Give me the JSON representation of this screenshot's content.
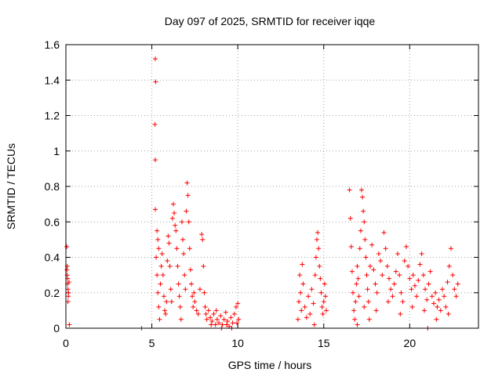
{
  "chart_data": {
    "type": "scatter",
    "title": "Day 097 of 2025, SRMTID for receiver iqqe",
    "xlabel": "GPS time / hours",
    "ylabel": "SRMTID / TECUs",
    "xlim": [
      0,
      24
    ],
    "ylim": [
      0,
      1.6
    ],
    "x_ticks": [
      0,
      5,
      10,
      15,
      20
    ],
    "x_tick_labels": [
      "0",
      "5",
      "10",
      "15",
      "20"
    ],
    "y_ticks": [
      0,
      0.2,
      0.4,
      0.6,
      0.8,
      1,
      1.2,
      1.4,
      1.6
    ],
    "y_tick_labels": [
      "0",
      "0.2",
      "0.4",
      "0.6",
      "0.8",
      "1",
      "1.2",
      "1.4",
      "1.6"
    ],
    "grid": true,
    "marker": "+",
    "marker_color": "#ff0000",
    "series": [
      {
        "name": "SRMTID",
        "points": [
          [
            0.05,
            0.46
          ],
          [
            0.06,
            0.33
          ],
          [
            0.08,
            0.3
          ],
          [
            0.1,
            0.25
          ],
          [
            0.12,
            0.22
          ],
          [
            0.14,
            0.18
          ],
          [
            0.1,
            0.28
          ],
          [
            0.15,
            0.2
          ],
          [
            0.18,
            0.26
          ],
          [
            0.08,
            0.35
          ],
          [
            0.2,
            0.02
          ],
          [
            0.12,
            0.15
          ],
          [
            4.4,
            0.0
          ],
          [
            5.2,
            1.52
          ],
          [
            5.22,
            1.39
          ],
          [
            5.18,
            1.15
          ],
          [
            5.2,
            0.95
          ],
          [
            5.2,
            0.67
          ],
          [
            5.3,
            0.55
          ],
          [
            5.35,
            0.5
          ],
          [
            5.4,
            0.45
          ],
          [
            5.25,
            0.4
          ],
          [
            5.3,
            0.3
          ],
          [
            5.35,
            0.2
          ],
          [
            5.4,
            0.12
          ],
          [
            5.45,
            0.05
          ],
          [
            5.5,
            0.25
          ],
          [
            5.55,
            0.35
          ],
          [
            5.6,
            0.42
          ],
          [
            5.65,
            0.3
          ],
          [
            5.7,
            0.18
          ],
          [
            5.75,
            0.1
          ],
          [
            5.8,
            0.08
          ],
          [
            5.85,
            0.15
          ],
          [
            5.9,
            0.38
          ],
          [
            5.95,
            0.52
          ],
          [
            6.0,
            0.48
          ],
          [
            6.05,
            0.35
          ],
          [
            6.1,
            0.22
          ],
          [
            6.15,
            0.15
          ],
          [
            6.2,
            0.62
          ],
          [
            6.25,
            0.7
          ],
          [
            6.3,
            0.65
          ],
          [
            6.35,
            0.58
          ],
          [
            6.4,
            0.55
          ],
          [
            6.45,
            0.45
          ],
          [
            6.5,
            0.35
          ],
          [
            6.55,
            0.25
          ],
          [
            6.6,
            0.18
          ],
          [
            6.65,
            0.12
          ],
          [
            6.7,
            0.05
          ],
          [
            6.75,
            0.6
          ],
          [
            6.8,
            0.5
          ],
          [
            6.85,
            0.42
          ],
          [
            6.9,
            0.3
          ],
          [
            6.95,
            0.22
          ],
          [
            7.0,
            0.66
          ],
          [
            7.05,
            0.82
          ],
          [
            7.1,
            0.75
          ],
          [
            7.15,
            0.6
          ],
          [
            7.2,
            0.45
          ],
          [
            7.25,
            0.33
          ],
          [
            7.3,
            0.25
          ],
          [
            7.35,
            0.18
          ],
          [
            7.4,
            0.12
          ],
          [
            7.45,
            0.2
          ],
          [
            7.5,
            0.15
          ],
          [
            7.6,
            0.1
          ],
          [
            7.7,
            0.08
          ],
          [
            7.8,
            0.22
          ],
          [
            7.9,
            0.53
          ],
          [
            7.95,
            0.5
          ],
          [
            8.0,
            0.35
          ],
          [
            8.05,
            0.2
          ],
          [
            8.1,
            0.12
          ],
          [
            8.15,
            0.08
          ],
          [
            8.2,
            0.05
          ],
          [
            8.3,
            0.1
          ],
          [
            8.4,
            0.06
          ],
          [
            8.5,
            0.04
          ],
          [
            8.6,
            0.08
          ],
          [
            8.7,
            0.02
          ],
          [
            8.8,
            0.05
          ],
          [
            8.9,
            0.03
          ],
          [
            9.0,
            0.07
          ],
          [
            9.1,
            0.02
          ],
          [
            9.2,
            0.05
          ],
          [
            9.3,
            0.09
          ],
          [
            9.4,
            0.04
          ],
          [
            9.5,
            0.01
          ],
          [
            9.6,
            0.06
          ],
          [
            9.7,
            0.03
          ],
          [
            9.8,
            0.08
          ],
          [
            9.9,
            0.12
          ],
          [
            10.0,
            0.14
          ],
          [
            10.05,
            0.05
          ],
          [
            8.45,
            0.02
          ],
          [
            8.75,
            0.1
          ],
          [
            9.05,
            0.0
          ],
          [
            9.35,
            0.02
          ],
          [
            9.65,
            0.0
          ],
          [
            9.95,
            0.03
          ],
          [
            13.5,
            0.05
          ],
          [
            13.55,
            0.15
          ],
          [
            13.6,
            0.3
          ],
          [
            13.65,
            0.2
          ],
          [
            13.7,
            0.1
          ],
          [
            13.75,
            0.36
          ],
          [
            13.8,
            0.25
          ],
          [
            13.9,
            0.12
          ],
          [
            14.0,
            0.06
          ],
          [
            14.1,
            0.18
          ],
          [
            14.2,
            0.08
          ],
          [
            14.3,
            0.22
          ],
          [
            14.4,
            0.14
          ],
          [
            14.45,
            0.02
          ],
          [
            14.5,
            0.3
          ],
          [
            14.55,
            0.4
          ],
          [
            14.6,
            0.5
          ],
          [
            14.65,
            0.54
          ],
          [
            14.7,
            0.45
          ],
          [
            14.75,
            0.35
          ],
          [
            14.8,
            0.28
          ],
          [
            14.85,
            0.2
          ],
          [
            14.9,
            0.12
          ],
          [
            14.95,
            0.08
          ],
          [
            15.0,
            0.15
          ],
          [
            15.05,
            0.25
          ],
          [
            15.1,
            0.18
          ],
          [
            15.15,
            0.1
          ],
          [
            16.5,
            0.78
          ],
          [
            16.55,
            0.62
          ],
          [
            16.6,
            0.46
          ],
          [
            16.65,
            0.32
          ],
          [
            16.7,
            0.2
          ],
          [
            16.75,
            0.1
          ],
          [
            16.8,
            0.05
          ],
          [
            16.85,
            0.15
          ],
          [
            16.9,
            0.25
          ],
          [
            16.95,
            0.35
          ],
          [
            17.0,
            0.28
          ],
          [
            17.05,
            0.18
          ],
          [
            17.1,
            0.45
          ],
          [
            17.15,
            0.55
          ],
          [
            17.2,
            0.78
          ],
          [
            17.25,
            0.74
          ],
          [
            17.3,
            0.66
          ],
          [
            17.35,
            0.6
          ],
          [
            17.4,
            0.5
          ],
          [
            17.45,
            0.4
          ],
          [
            17.5,
            0.3
          ],
          [
            17.55,
            0.22
          ],
          [
            17.6,
            0.15
          ],
          [
            17.7,
            0.35
          ],
          [
            17.8,
            0.47
          ],
          [
            17.9,
            0.33
          ],
          [
            18.0,
            0.25
          ],
          [
            18.1,
            0.2
          ],
          [
            18.2,
            0.42
          ],
          [
            18.3,
            0.38
          ],
          [
            18.4,
            0.3
          ],
          [
            18.5,
            0.54
          ],
          [
            18.6,
            0.45
          ],
          [
            18.7,
            0.35
          ],
          [
            18.8,
            0.28
          ],
          [
            18.9,
            0.22
          ],
          [
            19.0,
            0.18
          ],
          [
            19.1,
            0.25
          ],
          [
            19.2,
            0.32
          ],
          [
            19.3,
            0.42
          ],
          [
            19.4,
            0.3
          ],
          [
            19.5,
            0.2
          ],
          [
            19.6,
            0.15
          ],
          [
            19.7,
            0.38
          ],
          [
            19.8,
            0.46
          ],
          [
            19.9,
            0.35
          ],
          [
            20.0,
            0.28
          ],
          [
            20.1,
            0.22
          ],
          [
            20.2,
            0.3
          ],
          [
            20.3,
            0.24
          ],
          [
            20.4,
            0.18
          ],
          [
            20.5,
            0.27
          ],
          [
            20.6,
            0.36
          ],
          [
            20.7,
            0.42
          ],
          [
            20.8,
            0.3
          ],
          [
            20.9,
            0.22
          ],
          [
            21.0,
            0.16
          ],
          [
            21.05,
            0.0
          ],
          [
            21.1,
            0.25
          ],
          [
            21.2,
            0.32
          ],
          [
            21.3,
            0.18
          ],
          [
            21.4,
            0.14
          ],
          [
            21.5,
            0.2
          ],
          [
            21.6,
            0.12
          ],
          [
            21.7,
            0.16
          ],
          [
            21.8,
            0.1
          ],
          [
            21.9,
            0.22
          ],
          [
            22.0,
            0.18
          ],
          [
            22.1,
            0.12
          ],
          [
            22.2,
            0.26
          ],
          [
            22.3,
            0.35
          ],
          [
            22.4,
            0.45
          ],
          [
            22.5,
            0.3
          ],
          [
            22.6,
            0.22
          ],
          [
            22.7,
            0.18
          ],
          [
            22.8,
            0.25
          ],
          [
            17.35,
            0.12
          ],
          [
            18.05,
            0.1
          ],
          [
            18.75,
            0.15
          ],
          [
            19.45,
            0.08
          ],
          [
            20.15,
            0.12
          ],
          [
            20.85,
            0.1
          ],
          [
            21.55,
            0.05
          ],
          [
            22.25,
            0.08
          ],
          [
            16.95,
            0.02
          ],
          [
            17.65,
            0.05
          ]
        ]
      }
    ]
  }
}
